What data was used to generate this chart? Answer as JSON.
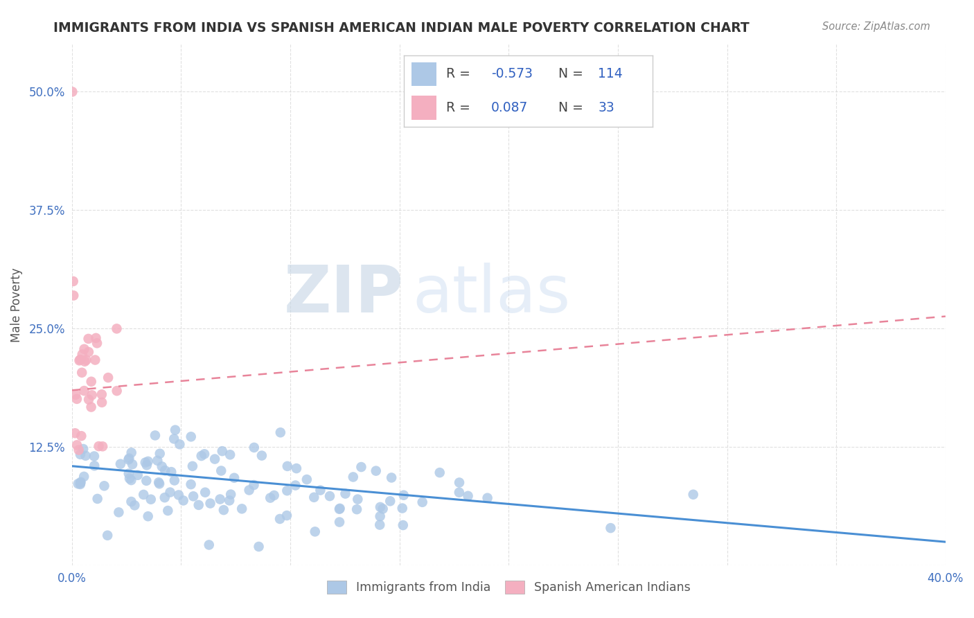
{
  "title": "IMMIGRANTS FROM INDIA VS SPANISH AMERICAN INDIAN MALE POVERTY CORRELATION CHART",
  "source": "Source: ZipAtlas.com",
  "ylabel": "Male Poverty",
  "xlim": [
    0.0,
    0.4
  ],
  "ylim": [
    0.0,
    0.55
  ],
  "yticks": [
    0.0,
    0.125,
    0.25,
    0.375,
    0.5
  ],
  "ytick_labels": [
    "",
    "12.5%",
    "25.0%",
    "37.5%",
    "50.0%"
  ],
  "xtick_positions": [
    0.0,
    0.05,
    0.1,
    0.15,
    0.2,
    0.25,
    0.3,
    0.35,
    0.4
  ],
  "xtick_labels": [
    "0.0%",
    "",
    "",
    "",
    "",
    "",
    "",
    "",
    "40.0%"
  ],
  "blue_R": -0.573,
  "blue_N": 114,
  "pink_R": 0.087,
  "pink_N": 33,
  "blue_color": "#adc8e6",
  "pink_color": "#f4afc0",
  "blue_line_color": "#4a8fd4",
  "pink_line_color": "#e8849a",
  "background_color": "#ffffff",
  "grid_color": "#cccccc",
  "title_color": "#333333",
  "axis_label_color": "#555555",
  "tick_color": "#4070c0",
  "legend_value_color": "#3060c0",
  "watermark_zip_color": "#d0dce8",
  "watermark_atlas_color": "#c8d8ec",
  "blue_line_intercept": 0.105,
  "blue_line_slope": -0.2,
  "pink_line_intercept": 0.185,
  "pink_line_slope": 0.195
}
